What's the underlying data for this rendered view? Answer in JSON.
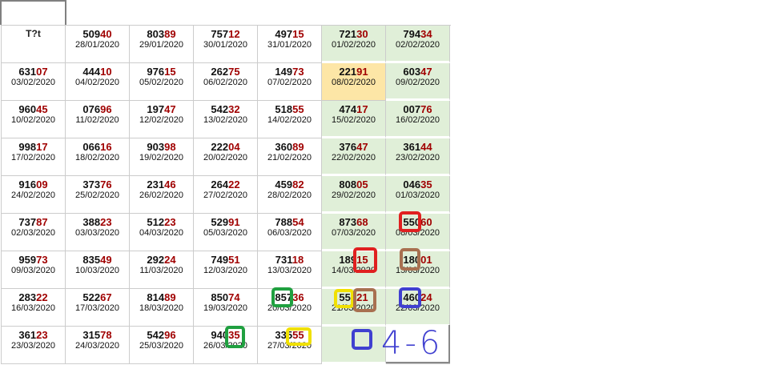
{
  "header_label": "T?t",
  "colors": {
    "red_digits": "#a00000",
    "weekend_bg": "#e0efd8",
    "highlight_bg": "#fde6a6"
  },
  "rows": [
    [
      {
        "n": "50940",
        "d": "28/01/2020"
      },
      {
        "n": "80389",
        "d": "29/01/2020"
      },
      {
        "n": "75712",
        "d": "30/01/2020"
      },
      {
        "n": "49715",
        "d": "31/01/2020"
      },
      {
        "n": "72130",
        "d": "01/02/2020"
      },
      {
        "n": "79434",
        "d": "02/02/2020"
      }
    ],
    [
      {
        "n": "63107",
        "d": "03/02/2020"
      },
      {
        "n": "44410",
        "d": "04/02/2020"
      },
      {
        "n": "97615",
        "d": "05/02/2020"
      },
      {
        "n": "26275",
        "d": "06/02/2020"
      },
      {
        "n": "14973",
        "d": "07/02/2020"
      },
      {
        "n": "22191",
        "d": "08/02/2020",
        "hl": true
      },
      {
        "n": "60347",
        "d": "09/02/2020"
      }
    ],
    [
      {
        "n": "96045",
        "d": "10/02/2020"
      },
      {
        "n": "07696",
        "d": "11/02/2020"
      },
      {
        "n": "19747",
        "d": "12/02/2020"
      },
      {
        "n": "54232",
        "d": "13/02/2020"
      },
      {
        "n": "51855",
        "d": "14/02/2020"
      },
      {
        "n": "47417",
        "d": "15/02/2020"
      },
      {
        "n": "00776",
        "d": "16/02/2020"
      }
    ],
    [
      {
        "n": "99817",
        "d": "17/02/2020"
      },
      {
        "n": "06616",
        "d": "18/02/2020"
      },
      {
        "n": "90398",
        "d": "19/02/2020"
      },
      {
        "n": "22204",
        "d": "20/02/2020"
      },
      {
        "n": "36089",
        "d": "21/02/2020"
      },
      {
        "n": "37647",
        "d": "22/02/2020"
      },
      {
        "n": "36144",
        "d": "23/02/2020"
      }
    ],
    [
      {
        "n": "91609",
        "d": "24/02/2020"
      },
      {
        "n": "37376",
        "d": "25/02/2020"
      },
      {
        "n": "23146",
        "d": "26/02/2020"
      },
      {
        "n": "26422",
        "d": "27/02/2020"
      },
      {
        "n": "45982",
        "d": "28/02/2020"
      },
      {
        "n": "80805",
        "d": "29/02/2020"
      },
      {
        "n": "04635",
        "d": "01/03/2020"
      }
    ],
    [
      {
        "n": "73787",
        "d": "02/03/2020"
      },
      {
        "n": "38823",
        "d": "03/03/2020"
      },
      {
        "n": "51223",
        "d": "04/03/2020"
      },
      {
        "n": "52991",
        "d": "05/03/2020"
      },
      {
        "n": "78854",
        "d": "06/03/2020"
      },
      {
        "n": "87368",
        "d": "07/03/2020"
      },
      {
        "n": "55060",
        "d": "08/03/2020"
      }
    ],
    [
      {
        "n": "95973",
        "d": "09/03/2020"
      },
      {
        "n": "83549",
        "d": "10/03/2020"
      },
      {
        "n": "29224",
        "d": "11/03/2020"
      },
      {
        "n": "74951",
        "d": "12/03/2020"
      },
      {
        "n": "73118",
        "d": "13/03/2020"
      },
      {
        "n": "18915",
        "d": "14/03/2020"
      },
      {
        "n": "18001",
        "d": "15/03/2020"
      }
    ],
    [
      {
        "n": "28322",
        "d": "16/03/2020"
      },
      {
        "n": "52267",
        "d": "17/03/2020"
      },
      {
        "n": "81489",
        "d": "18/03/2020"
      },
      {
        "n": "85074",
        "d": "19/03/2020"
      },
      {
        "n": "85736",
        "d": "20/03/2020"
      },
      {
        "n": "55021",
        "d": "21/03/2020"
      },
      {
        "n": "46024",
        "d": "22/03/2020"
      }
    ],
    [
      {
        "n": "36123",
        "d": "23/03/2020"
      },
      {
        "n": "31578",
        "d": "24/03/2020"
      },
      {
        "n": "54296",
        "d": "25/03/2020"
      },
      {
        "n": "94035",
        "d": "26/03/2020"
      },
      {
        "n": "33555",
        "d": "27/03/2020"
      }
    ]
  ],
  "annotation_text": "4-6"
}
